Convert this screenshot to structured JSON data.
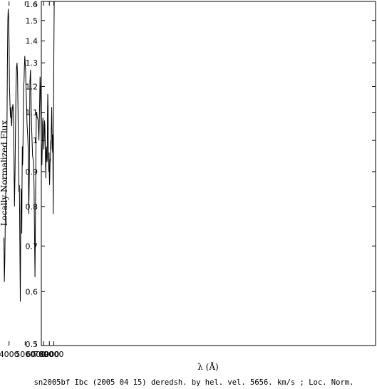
{
  "chart_data": {
    "type": "line",
    "title": "",
    "xlabel": "λ (Å)",
    "ylabel": "Locally Normalized Flux",
    "caption": "sn2005bf Ibc (2005 04 15) deredsh. by hel. vel.  5656. km/s ;  Loc. Norm.",
    "x_scale": "reciprocal",
    "y_scale": "log",
    "xlim": [
      3600,
      9200
    ],
    "ylim": [
      0.5,
      1.6
    ],
    "x_ticks": [
      4000,
      5000,
      6000,
      7000,
      8000,
      9000
    ],
    "y_ticks": [
      0.5,
      0.6,
      0.7,
      0.8,
      0.9,
      1,
      1.1,
      1.2,
      1.3,
      1.4,
      1.5,
      1.6
    ],
    "grid": false,
    "color": "#000000",
    "series": [
      {
        "name": "",
        "x": [
          3760,
          3780,
          3800,
          3820,
          3840,
          3860,
          3880,
          3900,
          3920,
          3940,
          3960,
          3980,
          4000,
          4020,
          4040,
          4060,
          4080,
          4100,
          4120,
          4140,
          4160,
          4180,
          4200,
          4230,
          4260,
          4290,
          4320,
          4350,
          4380,
          4410,
          4440,
          4470,
          4500,
          4530,
          4560,
          4590,
          4620,
          4650,
          4680,
          4710,
          4730,
          4750,
          4770,
          4790,
          4810,
          4830,
          4850,
          4880,
          4910,
          4940,
          4970,
          5000,
          5030,
          5060,
          5100,
          5150,
          5200,
          5250,
          5300,
          5350,
          5400,
          5450,
          5500,
          5550,
          5600,
          5650,
          5700,
          5750,
          5800,
          5850,
          5900,
          5950,
          6000,
          6050,
          6100,
          6150,
          6200,
          6250,
          6300,
          6350,
          6400,
          6450,
          6500,
          6550,
          6600,
          6650,
          6700,
          6750,
          6800,
          6850,
          6900,
          6950,
          7000,
          7050,
          7100,
          7150,
          7200,
          7250,
          7300,
          7350,
          7400,
          7450,
          7500,
          7550,
          7600,
          7650,
          7700,
          7750,
          7800,
          7850,
          7900,
          7950,
          8000,
          8050,
          8100,
          8150,
          8200,
          8250,
          8300,
          8350,
          8400,
          8450,
          8500,
          8550,
          8600,
          8650,
          8700,
          8750,
          8800,
          8850,
          8900,
          8950,
          9000,
          9050,
          9100
        ],
        "y": [
          0.72,
          0.62,
          0.66,
          0.76,
          0.84,
          0.87,
          0.9,
          1.05,
          1.3,
          1.5,
          1.56,
          1.52,
          1.4,
          1.2,
          1.15,
          1.1,
          1.08,
          1.12,
          1.06,
          1.05,
          1.1,
          1.12,
          1.13,
          1.1,
          0.95,
          0.8,
          0.9,
          1.05,
          1.2,
          1.28,
          1.3,
          1.25,
          1.1,
          0.95,
          0.84,
          0.86,
          0.7,
          0.58,
          0.76,
          0.85,
          0.82,
          0.73,
          0.86,
          0.98,
          0.92,
          0.95,
          1.05,
          1.2,
          1.22,
          1.28,
          1.33,
          1.3,
          1.27,
          1.2,
          1.15,
          1.06,
          1.02,
          0.97,
          0.78,
          0.9,
          1.22,
          1.27,
          1.16,
          1.05,
          1.0,
          0.95,
          0.94,
          0.93,
          0.85,
          0.72,
          0.63,
          0.78,
          0.98,
          1.1,
          1.1,
          1.08,
          1.08,
          1.07,
          1.04,
          1.0,
          1.06,
          1.15,
          1.24,
          1.2,
          1.1,
          1.02,
          0.96,
          0.92,
          0.98,
          1.06,
          1.08,
          1.05,
          1.0,
          0.97,
          1.02,
          1.07,
          1.05,
          1.0,
          0.94,
          0.88,
          0.95,
          0.98,
          0.96,
          0.93,
          0.94,
          1.1,
          1.17,
          1.12,
          1.0,
          0.93,
          0.9,
          0.96,
          0.88,
          0.86,
          0.9,
          0.94,
          0.93,
          0.97,
          1.0,
          0.97,
          1.03,
          1.08,
          1.12,
          1.06,
          1.0,
          0.98,
          0.96,
          1.02,
          0.88,
          0.78,
          1.05,
          1.15,
          1.3,
          1.45,
          1.6
        ]
      }
    ]
  }
}
